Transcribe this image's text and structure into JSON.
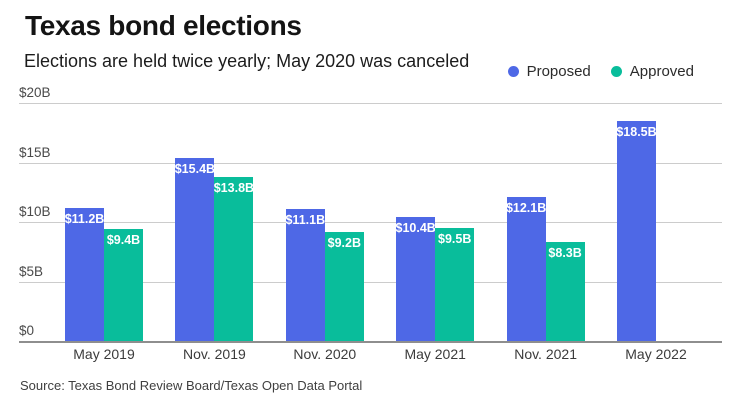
{
  "header": {
    "title": "Texas bond elections",
    "subtitle": "Elections are held twice yearly; May 2020 was canceled"
  },
  "source": "Source: Texas Bond Review Board/Texas Open Data Portal",
  "colors": {
    "proposed": "#4E68E6",
    "approved": "#09BD9B",
    "gridline": "#CCCCCC",
    "axis_line": "#8E8E8E"
  },
  "chart_data": {
    "type": "bar",
    "title": "Texas bond elections",
    "subtitle": "Elections are held twice yearly; May 2020 was canceled",
    "categories": [
      "May 2019",
      "Nov. 2019",
      "Nov. 2020",
      "May 2021",
      "Nov. 2021",
      "May 2022"
    ],
    "series": [
      {
        "name": "Proposed",
        "color": "#4E68E6",
        "values": [
          11.2,
          15.4,
          11.1,
          10.4,
          12.1,
          18.5
        ],
        "labels": [
          "$11.2B",
          "$15.4B",
          "$11.1B",
          "$10.4B",
          "$12.1B",
          "$18.5B"
        ]
      },
      {
        "name": "Approved",
        "color": "#09BD9B",
        "values": [
          9.4,
          13.8,
          9.2,
          9.5,
          8.3,
          null
        ],
        "labels": [
          "$9.4B",
          "$13.8B",
          "$9.2B",
          "$9.5B",
          "$8.3B",
          null
        ]
      }
    ],
    "y_ticks": [
      {
        "label": "$20B",
        "value": 20
      },
      {
        "label": "$15B",
        "value": 15
      },
      {
        "label": "$10B",
        "value": 10
      },
      {
        "label": "$5B",
        "value": 5
      },
      {
        "label": "$0",
        "value": 0
      }
    ],
    "ylim": [
      0,
      20
    ],
    "grid": true,
    "legend_position": "top-right",
    "xlabel": "",
    "ylabel": ""
  }
}
